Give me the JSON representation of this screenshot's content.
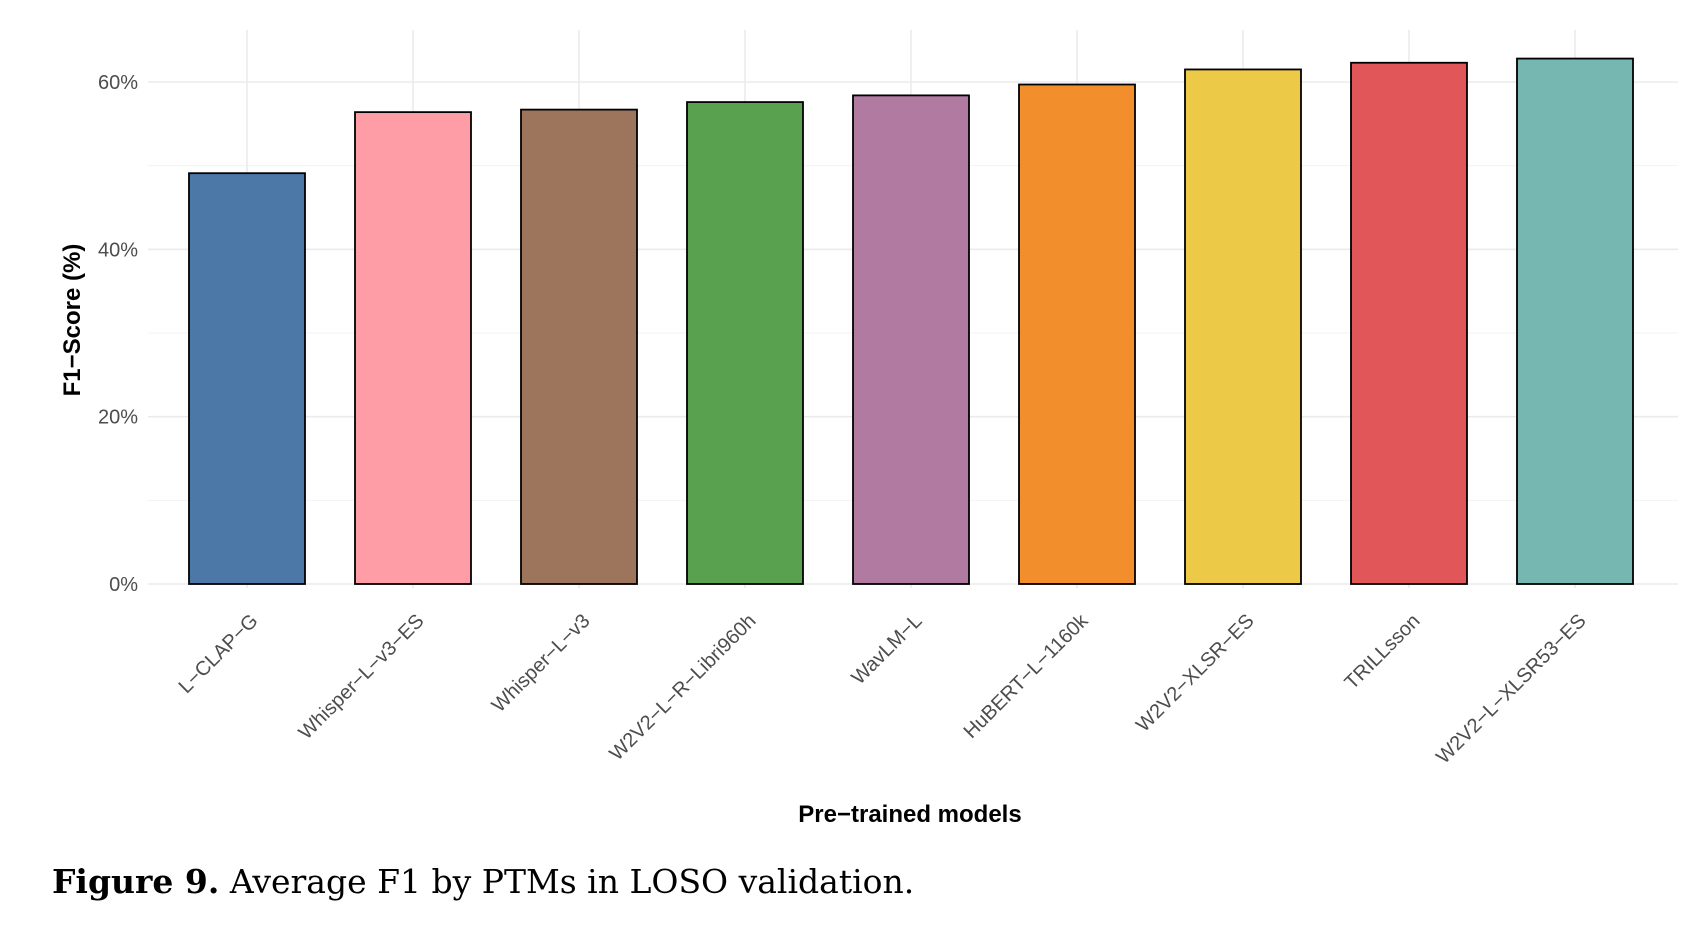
{
  "caption": {
    "label": "Figure 9.",
    "text": " Average F1 by PTMs in LOSO validation."
  },
  "chart_data": {
    "type": "bar",
    "title": "",
    "xlabel": "Pre−trained models",
    "ylabel": "F1−Score (%)",
    "ylim": [
      0,
      66
    ],
    "yticks": [
      {
        "value": 0,
        "label": "0%"
      },
      {
        "value": 20,
        "label": "20%"
      },
      {
        "value": 40,
        "label": "40%"
      },
      {
        "value": 60,
        "label": "60%"
      }
    ],
    "grid": true,
    "legend": "none",
    "categories": [
      "L−CLAP−G",
      "Whisper−L−v3−ES",
      "Whisper−L−v3",
      "W2V2−L−R−Libri960h",
      "WavLM−L",
      "HuBERT−L−1160k",
      "W2V2−XLSR−ES",
      "TRILLsson",
      "W2V2−L−XLSR53−ES"
    ],
    "values": [
      49.1,
      56.4,
      56.7,
      57.6,
      58.4,
      59.7,
      61.5,
      62.3,
      62.8
    ],
    "colors": [
      "#4c78a8",
      "#ff9da6",
      "#9d755d",
      "#59a14f",
      "#b07aa1",
      "#f28e2b",
      "#edc948",
      "#e15759",
      "#76b7b2"
    ]
  }
}
